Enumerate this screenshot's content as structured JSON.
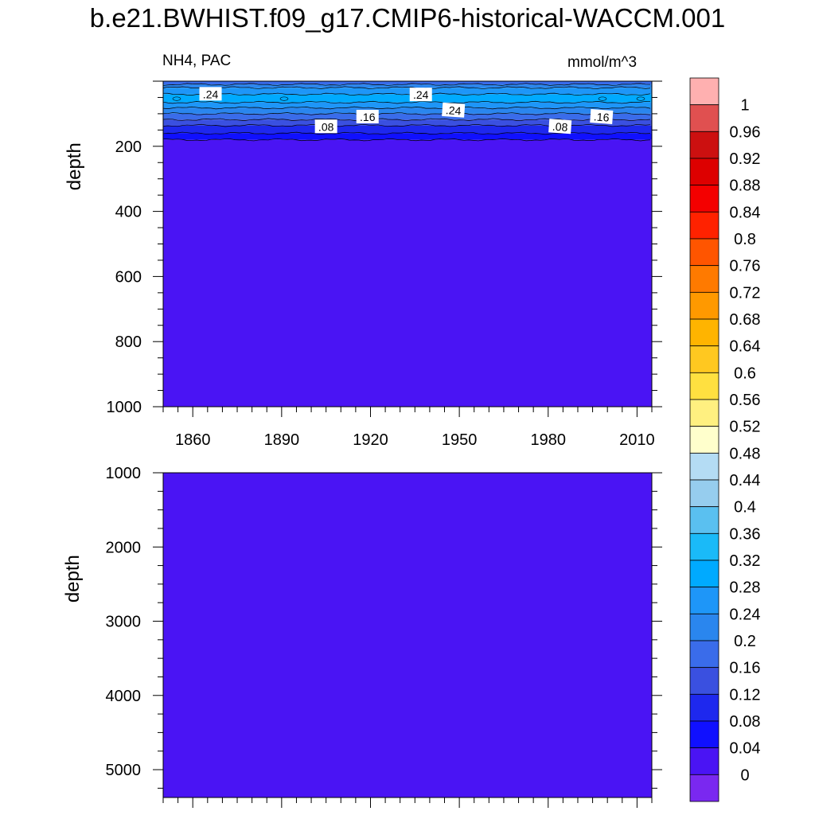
{
  "title": "b.e21.BWHIST.f09_g17.CMIP6-historical-WACCM.001",
  "chart_data": {
    "type": "heatmap",
    "variable_label": "NH4, PAC",
    "units_label": "mmol/m^3",
    "x_ticks": [
      "1860",
      "1890",
      "1920",
      "1950",
      "1980",
      "2010"
    ],
    "x_range": [
      1850,
      2015
    ],
    "top_panel": {
      "ylabel": "depth",
      "y_range": [
        0,
        1000
      ],
      "y_ticks": [
        "200",
        "400",
        "600",
        "800",
        "1000"
      ],
      "layers": [
        {
          "depth_top": 0,
          "depth_bottom": 10,
          "value": 0.18
        },
        {
          "depth_top": 10,
          "depth_bottom": 20,
          "value": 0.22
        },
        {
          "depth_top": 20,
          "depth_bottom": 40,
          "value": 0.27
        },
        {
          "depth_top": 40,
          "depth_bottom": 65,
          "value": 0.3
        },
        {
          "depth_top": 65,
          "depth_bottom": 82,
          "value": 0.26
        },
        {
          "depth_top": 82,
          "depth_bottom": 100,
          "value": 0.22
        },
        {
          "depth_top": 100,
          "depth_bottom": 118,
          "value": 0.18
        },
        {
          "depth_top": 118,
          "depth_bottom": 136,
          "value": 0.14
        },
        {
          "depth_top": 136,
          "depth_bottom": 160,
          "value": 0.1
        },
        {
          "depth_top": 160,
          "depth_bottom": 180,
          "value": 0.06
        },
        {
          "depth_top": 180,
          "depth_bottom": 1000,
          "value": 0.02
        }
      ],
      "contour_labels": [
        {
          "text": ".24",
          "year": 1866,
          "depth": 40
        },
        {
          "text": ".24",
          "year": 1937,
          "depth": 42
        },
        {
          "text": ".24",
          "year": 1948,
          "depth": 90
        },
        {
          "text": ".16",
          "year": 1919,
          "depth": 110
        },
        {
          "text": ".16",
          "year": 1998,
          "depth": 110
        },
        {
          "text": ".08",
          "year": 1905,
          "depth": 140
        },
        {
          "text": ".08",
          "year": 1984,
          "depth": 140
        }
      ]
    },
    "bottom_panel": {
      "ylabel": "depth",
      "y_range": [
        1000,
        5375
      ],
      "y_ticks": [
        "1000",
        "2000",
        "3000",
        "4000",
        "5000"
      ],
      "value": 0.02
    },
    "colorbar": {
      "labels": [
        "1",
        "0.96",
        "0.92",
        "0.88",
        "0.84",
        "0.8",
        "0.76",
        "0.72",
        "0.68",
        "0.64",
        "0.6",
        "0.56",
        "0.52",
        "0.48",
        "0.44",
        "0.4",
        "0.36",
        "0.32",
        "0.28",
        "0.24",
        "0.2",
        "0.16",
        "0.12",
        "0.08",
        "0.04",
        "0"
      ],
      "colors": [
        "#ffb0b0",
        "#e05050",
        "#cc1010",
        "#dd0000",
        "#f40000",
        "#ff2200",
        "#ff5500",
        "#ff7a00",
        "#ff9900",
        "#ffb400",
        "#ffc820",
        "#ffe040",
        "#fff080",
        "#ffffcc",
        "#b4dcf4",
        "#96cdee",
        "#5ac0f0",
        "#1abaf8",
        "#00aaff",
        "#1e96f8",
        "#2a86ee",
        "#3a6cea",
        "#3a50e0",
        "#1e28ee",
        "#1010ff",
        "#4a14f4",
        "#7a28f0"
      ]
    }
  }
}
